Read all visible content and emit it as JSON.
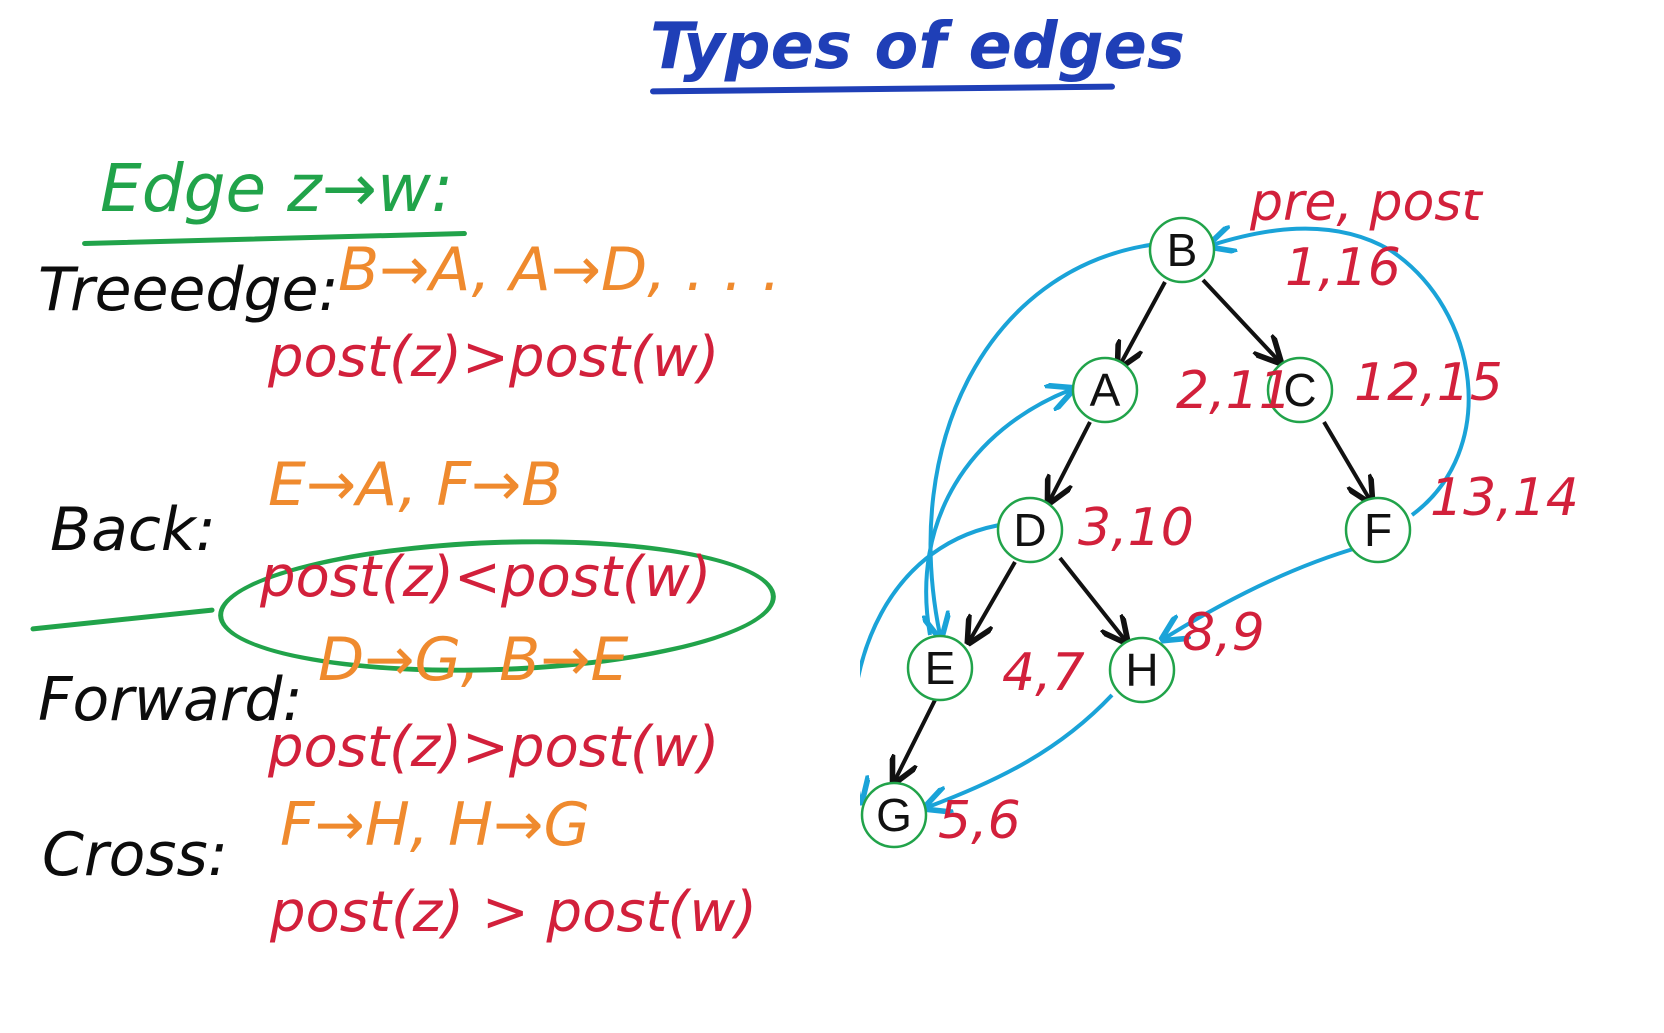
{
  "title": "Types of edges",
  "definition": "Edge z→w:",
  "sections": [
    {
      "label": "Treeedge:",
      "examples": "B→A, A→D, . . .",
      "relation": "post(z)>post(w)"
    },
    {
      "label": "Back:",
      "examples": "E→A, F→B",
      "relation": "post(z)<post(w)"
    },
    {
      "label": "Forward:",
      "examples": "D→G, B→E",
      "relation": "post(z)>post(w)"
    },
    {
      "label": "Cross:",
      "examples": "F→H, H→G",
      "relation": "post(z) > post(w)"
    }
  ],
  "graph": {
    "legend": "pre, post",
    "nodes": [
      {
        "id": "B",
        "prepost": "1,16"
      },
      {
        "id": "A",
        "prepost": "2,11"
      },
      {
        "id": "C",
        "prepost": "12,15"
      },
      {
        "id": "D",
        "prepost": "3,10"
      },
      {
        "id": "F",
        "prepost": "13,14"
      },
      {
        "id": "E",
        "prepost": "4,7"
      },
      {
        "id": "H",
        "prepost": "8,9"
      },
      {
        "id": "G",
        "prepost": "5,6"
      }
    ],
    "tree_edges": [
      [
        "B",
        "A"
      ],
      [
        "B",
        "C"
      ],
      [
        "A",
        "D"
      ],
      [
        "C",
        "F"
      ],
      [
        "D",
        "E"
      ],
      [
        "D",
        "H"
      ],
      [
        "E",
        "G"
      ]
    ],
    "non_tree_edges": [
      [
        "B",
        "E"
      ],
      [
        "E",
        "A"
      ],
      [
        "D",
        "G"
      ],
      [
        "F",
        "B"
      ],
      [
        "F",
        "H"
      ],
      [
        "H",
        "G"
      ]
    ],
    "colors": {
      "tree_edge": "#111111",
      "non_tree_edge": "#1aa3d8",
      "node_border": "#21a34a",
      "label": "#d2203b"
    }
  }
}
